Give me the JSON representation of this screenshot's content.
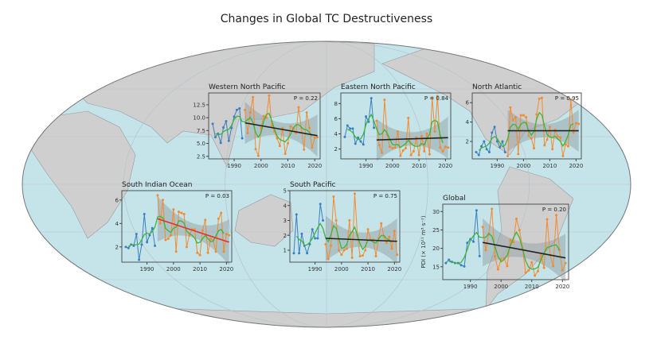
{
  "title": "Changes in Global TC Destructiveness",
  "colors": {
    "ocean": "#c4e4ea",
    "land": "#cfcfcf",
    "coast": "#9a9a9a",
    "early": "#3a7fc0",
    "late": "#f28b30",
    "smooth": "#3db53d",
    "trend": "#222222",
    "trend_sig": "#e8302a",
    "band": "#8f9a9e"
  },
  "chart_data": [
    {
      "name": "Western North Pacific",
      "type": "line",
      "p_label": "P = 0.22",
      "ylim": [
        2,
        14.8
      ],
      "xlim": [
        1980.5,
        2022
      ],
      "yticks": [
        2.5,
        5.0,
        7.5,
        10.0,
        12.5
      ],
      "ytick_labels": [
        "2.5",
        "5.0",
        "7.5",
        "10.0",
        "12.5"
      ],
      "xticks": [
        1990,
        2000,
        2010,
        2020
      ],
      "xtick_labels": [
        "1990",
        "2000",
        "2010",
        "2020"
      ],
      "early": {
        "x0": 1982,
        "values": [
          8.8,
          6.2,
          6.9,
          5.1,
          8.1,
          9.3,
          5.5,
          8.0,
          10.2,
          11.5,
          11.8,
          6.0
        ]
      },
      "late": {
        "x0": 1994,
        "values": [
          11.5,
          7.0,
          11.0,
          14.0,
          3.9,
          2.6,
          8.0,
          10.3,
          10.0,
          14.3,
          8.5,
          7.3,
          6.0,
          4.5,
          8.0,
          3.0,
          5.0,
          8.3,
          8.0,
          7.0,
          12.0,
          8.0,
          3.8,
          11.0,
          8.0,
          4.2,
          6.1,
          6.2
        ]
      },
      "trend": {
        "x": [
          1994,
          2021
        ],
        "y": [
          9.0,
          6.5
        ],
        "significant": false
      }
    },
    {
      "name": "Eastern North Pacific",
      "type": "line",
      "p_label": "P = 0.84",
      "ylim": [
        0.7,
        9.4
      ],
      "xlim": [
        1980.5,
        2022
      ],
      "yticks": [
        2,
        4,
        6,
        8
      ],
      "ytick_labels": [
        "2",
        "4",
        "6",
        "8"
      ],
      "xticks": [
        1990,
        2000,
        2010,
        2020
      ],
      "xtick_labels": [
        "1990",
        "2000",
        "2010",
        "2020"
      ],
      "early": {
        "x0": 1982,
        "values": [
          3.6,
          5.1,
          4.7,
          4.7,
          2.7,
          3.5,
          3.0,
          2.6,
          6.3,
          5.6,
          8.7,
          4.8
        ]
      },
      "late": {
        "x0": 1994,
        "values": [
          5.7,
          2.5,
          1.5,
          8.5,
          3.9,
          2.3,
          2.1,
          2.2,
          4.3,
          1.1,
          1.8,
          2.1,
          6.1,
          1.2,
          1.7,
          3.5,
          1.2,
          3.7,
          1.7,
          4.0,
          1.3,
          8.8,
          4.3,
          9.0,
          2.2,
          1.7,
          2.3,
          2.2
        ]
      },
      "trend": {
        "x": [
          1994,
          2021
        ],
        "y": [
          3.2,
          3.5
        ],
        "significant": false
      }
    },
    {
      "name": "North Atlantic",
      "type": "line",
      "p_label": "P = 0.95",
      "ylim": [
        0.2,
        7.0
      ],
      "xlim": [
        1980.5,
        2022
      ],
      "yticks": [
        2,
        4,
        6
      ],
      "ytick_labels": [
        "2",
        "4",
        "6"
      ],
      "xticks": [
        1990,
        2000,
        2010,
        2020
      ],
      "xtick_labels": [
        "1990",
        "2000",
        "2010",
        "2020"
      ],
      "early": {
        "x0": 1982,
        "values": [
          0.9,
          0.6,
          1.5,
          2.0,
          1.2,
          0.9,
          2.9,
          3.5,
          2.0,
          1.4,
          2.0,
          0.9
        ]
      },
      "late": {
        "x0": 1994,
        "values": [
          0.5,
          5.5,
          4.2,
          4.5,
          0.7,
          4.7,
          4.7,
          4.5,
          2.6,
          2.3,
          1.3,
          4.8,
          6.4,
          6.5,
          1.6,
          2.2,
          3.5,
          1.2,
          3.2,
          2.5,
          2.4,
          0.5,
          1.7,
          1.5,
          6.3,
          2.9,
          3.9,
          3.8
        ]
      },
      "trend": {
        "x": [
          1994,
          2021
        ],
        "y": [
          3.1,
          3.1
        ],
        "significant": false
      }
    },
    {
      "name": "South Indian Ocean",
      "type": "line",
      "p_label": "P = 0.03",
      "ylim": [
        0.7,
        6.8
      ],
      "xlim": [
        1980.5,
        2022
      ],
      "yticks": [
        2,
        4,
        6
      ],
      "ytick_labels": [
        "2",
        "4",
        "6"
      ],
      "xticks": [
        1990,
        2000,
        2010,
        2020
      ],
      "xtick_labels": [
        "1990",
        "2000",
        "2010",
        "2020"
      ],
      "early": {
        "x0": 1982,
        "values": [
          2.0,
          1.9,
          2.2,
          2.1,
          3.1,
          0.9,
          2.2,
          4.8,
          2.4,
          3.0,
          3.6,
          2.1
        ]
      },
      "late": {
        "x0": 1994,
        "values": [
          6.4,
          4.0,
          6.0,
          2.6,
          2.7,
          3.0,
          5.2,
          1.6,
          5.0,
          4.9,
          4.8,
          2.0,
          3.0,
          3.5,
          3.5,
          1.5,
          1.3,
          3.4,
          4.3,
          1.5,
          2.7,
          2.6,
          1.6,
          4.4,
          4.9,
          1.6,
          3.1,
          3.0
        ]
      },
      "trend": {
        "x": [
          1994,
          2021
        ],
        "y": [
          4.4,
          2.4
        ],
        "significant": true
      }
    },
    {
      "name": "South Pacific",
      "type": "line",
      "p_label": "P = 0.75",
      "ylim": [
        0.2,
        5.0
      ],
      "xlim": [
        1980.5,
        2022
      ],
      "yticks": [
        1,
        2,
        3,
        4,
        5
      ],
      "ytick_labels": [
        "1",
        "2",
        "3",
        "4",
        "5"
      ],
      "xticks": [
        1990,
        2000,
        2010,
        2020
      ],
      "xtick_labels": [
        "1990",
        "2000",
        "2010",
        "2020"
      ],
      "early": {
        "x0": 1982,
        "values": [
          0.8,
          3.4,
          0.8,
          2.1,
          1.3,
          0.8,
          1.4,
          2.4,
          1.8,
          1.8,
          4.1,
          3.0
        ]
      },
      "late": {
        "x0": 1994,
        "values": [
          1.4,
          0.4,
          1.3,
          4.6,
          3.0,
          1.0,
          0.7,
          1.0,
          1.1,
          3.0,
          0.5,
          4.8,
          2.0,
          0.6,
          0.65,
          1.0,
          2.4,
          1.7,
          1.7,
          0.6,
          1.8,
          2.8,
          1.9,
          1.5,
          1.9,
          1.1,
          2.3,
          0.7
        ]
      },
      "trend": {
        "x": [
          1994,
          2021
        ],
        "y": [
          1.8,
          1.6
        ],
        "significant": false
      }
    },
    {
      "name": "Global",
      "type": "line",
      "p_label": "P = 0.20",
      "ylim": [
        11.5,
        32
      ],
      "xlim": [
        1981,
        2022
      ],
      "ylabel": "PDI (× 10¹¹ m³ s⁻²)",
      "yticks": [
        15,
        20,
        25,
        30
      ],
      "ytick_labels": [
        "15",
        "20",
        "25",
        "30"
      ],
      "xticks": [
        1990,
        2000,
        2010,
        2020
      ],
      "xtick_labels": [
        "1990",
        "2000",
        "2010",
        "2020"
      ],
      "early": {
        "x0": 1982,
        "values": [
          16.0,
          16.9,
          16.3,
          16.0,
          16.0,
          15.4,
          15.1,
          21.5,
          22.5,
          21.8,
          30.3,
          17.9
        ]
      },
      "late": {
        "x0": 1994,
        "values": [
          25.8,
          19.5,
          24.0,
          30.7,
          17.8,
          14.3,
          17.0,
          17.3,
          15.2,
          22.2,
          21.7,
          28.0,
          25.0,
          20.0,
          13.4,
          14.0,
          16.2,
          12.6,
          13.8,
          18.0,
          14.7,
          27.9,
          18.1,
          15.2,
          29.0,
          19.5,
          14.0,
          16.0
        ]
      },
      "trend": {
        "x": [
          1994,
          2021
        ],
        "y": [
          21.6,
          17.4
        ],
        "significant": false
      }
    }
  ]
}
